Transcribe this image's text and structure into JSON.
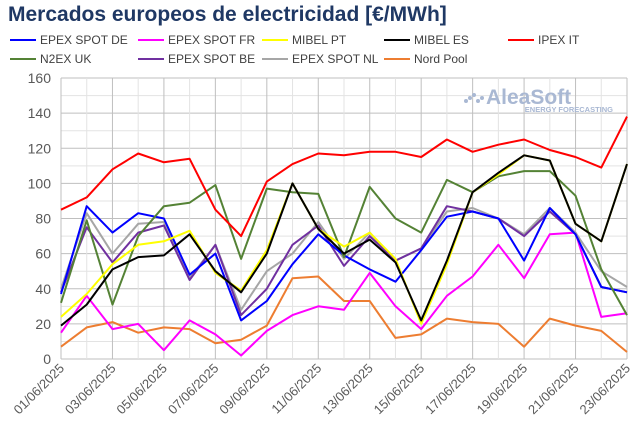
{
  "chart_data": {
    "type": "line",
    "title": "Mercados europeos de electricidad [€/MWh]",
    "watermark": {
      "name": "AleaSoft",
      "tagline": "ENERGY FORECASTING"
    },
    "xlabel": "",
    "ylabel": "",
    "ylim": [
      0,
      160
    ],
    "yticks": [
      0,
      20,
      40,
      60,
      80,
      100,
      120,
      140,
      160
    ],
    "grid": true,
    "legend_position": "top",
    "x": [
      "01/06/2025",
      "02/06/2025",
      "03/06/2025",
      "04/06/2025",
      "05/06/2025",
      "06/06/2025",
      "07/06/2025",
      "08/06/2025",
      "09/06/2025",
      "10/06/2025",
      "11/06/2025",
      "12/06/2025",
      "13/06/2025",
      "14/06/2025",
      "15/06/2025",
      "16/06/2025",
      "17/06/2025",
      "18/06/2025",
      "19/06/2025",
      "20/06/2025",
      "21/06/2025",
      "22/06/2025",
      "23/06/2025"
    ],
    "xtick_labels": [
      "01/06/2025",
      "03/06/2025",
      "05/06/2025",
      "07/06/2025",
      "09/06/2025",
      "11/06/2025",
      "13/06/2025",
      "15/06/2025",
      "17/06/2025",
      "19/06/2025",
      "21/06/2025",
      "23/06/2025"
    ],
    "series": [
      {
        "name": "EPEX SPOT DE",
        "color": "#0000ff",
        "values": [
          37,
          87,
          72,
          83,
          80,
          48,
          60,
          22,
          33,
          54,
          71,
          59,
          51,
          44,
          62,
          81,
          84,
          80,
          56,
          86,
          71,
          41,
          38
        ]
      },
      {
        "name": "EPEX SPOT FR",
        "color": "#ff00ff",
        "values": [
          15,
          36,
          17,
          20,
          5,
          22,
          14,
          2,
          16,
          25,
          30,
          28,
          49,
          30,
          17,
          36,
          47,
          65,
          46,
          71,
          72,
          24,
          26
        ]
      },
      {
        "name": "MIBEL PT",
        "color": "#ffff00",
        "values": [
          24,
          37,
          54,
          65,
          67,
          73,
          49,
          39,
          62,
          100,
          74,
          64,
          72,
          57,
          20,
          54,
          95,
          105,
          116,
          113,
          77,
          67,
          111
        ]
      },
      {
        "name": "MIBEL ES",
        "color": "#000000",
        "values": [
          19,
          31,
          51,
          58,
          59,
          71,
          50,
          38,
          60,
          100,
          74,
          60,
          68,
          55,
          22,
          56,
          95,
          106,
          116,
          113,
          77,
          67,
          111
        ]
      },
      {
        "name": "IPEX IT",
        "color": "#ff0000",
        "values": [
          85,
          92,
          108,
          117,
          112,
          114,
          85,
          70,
          101,
          111,
          117,
          116,
          118,
          118,
          115,
          125,
          118,
          122,
          125,
          119,
          115,
          109,
          138
        ]
      },
      {
        "name": "N2EX UK",
        "color": "#548235",
        "values": [
          32,
          79,
          31,
          70,
          87,
          89,
          99,
          57,
          97,
          95,
          94,
          58,
          98,
          80,
          72,
          102,
          95,
          104,
          107,
          107,
          93,
          51,
          25
        ]
      },
      {
        "name": "EPEX SPOT BE",
        "color": "#7030a0",
        "values": [
          38,
          75,
          55,
          72,
          76,
          45,
          65,
          25,
          40,
          65,
          76,
          53,
          70,
          56,
          63,
          87,
          84,
          80,
          70,
          84,
          71,
          41,
          38
        ]
      },
      {
        "name": "EPEX SPOT NL",
        "color": "#a6a6a6",
        "values": [
          40,
          83,
          60,
          77,
          78,
          46,
          65,
          28,
          50,
          60,
          78,
          57,
          72,
          56,
          63,
          84,
          86,
          80,
          71,
          86,
          72,
          50,
          41
        ]
      },
      {
        "name": "Nord Pool",
        "color": "#ed7d31",
        "values": [
          7,
          18,
          21,
          15,
          18,
          17,
          9,
          11,
          19,
          46,
          47,
          33,
          33,
          12,
          14,
          23,
          21,
          20,
          7,
          23,
          19,
          16,
          4
        ]
      }
    ]
  }
}
